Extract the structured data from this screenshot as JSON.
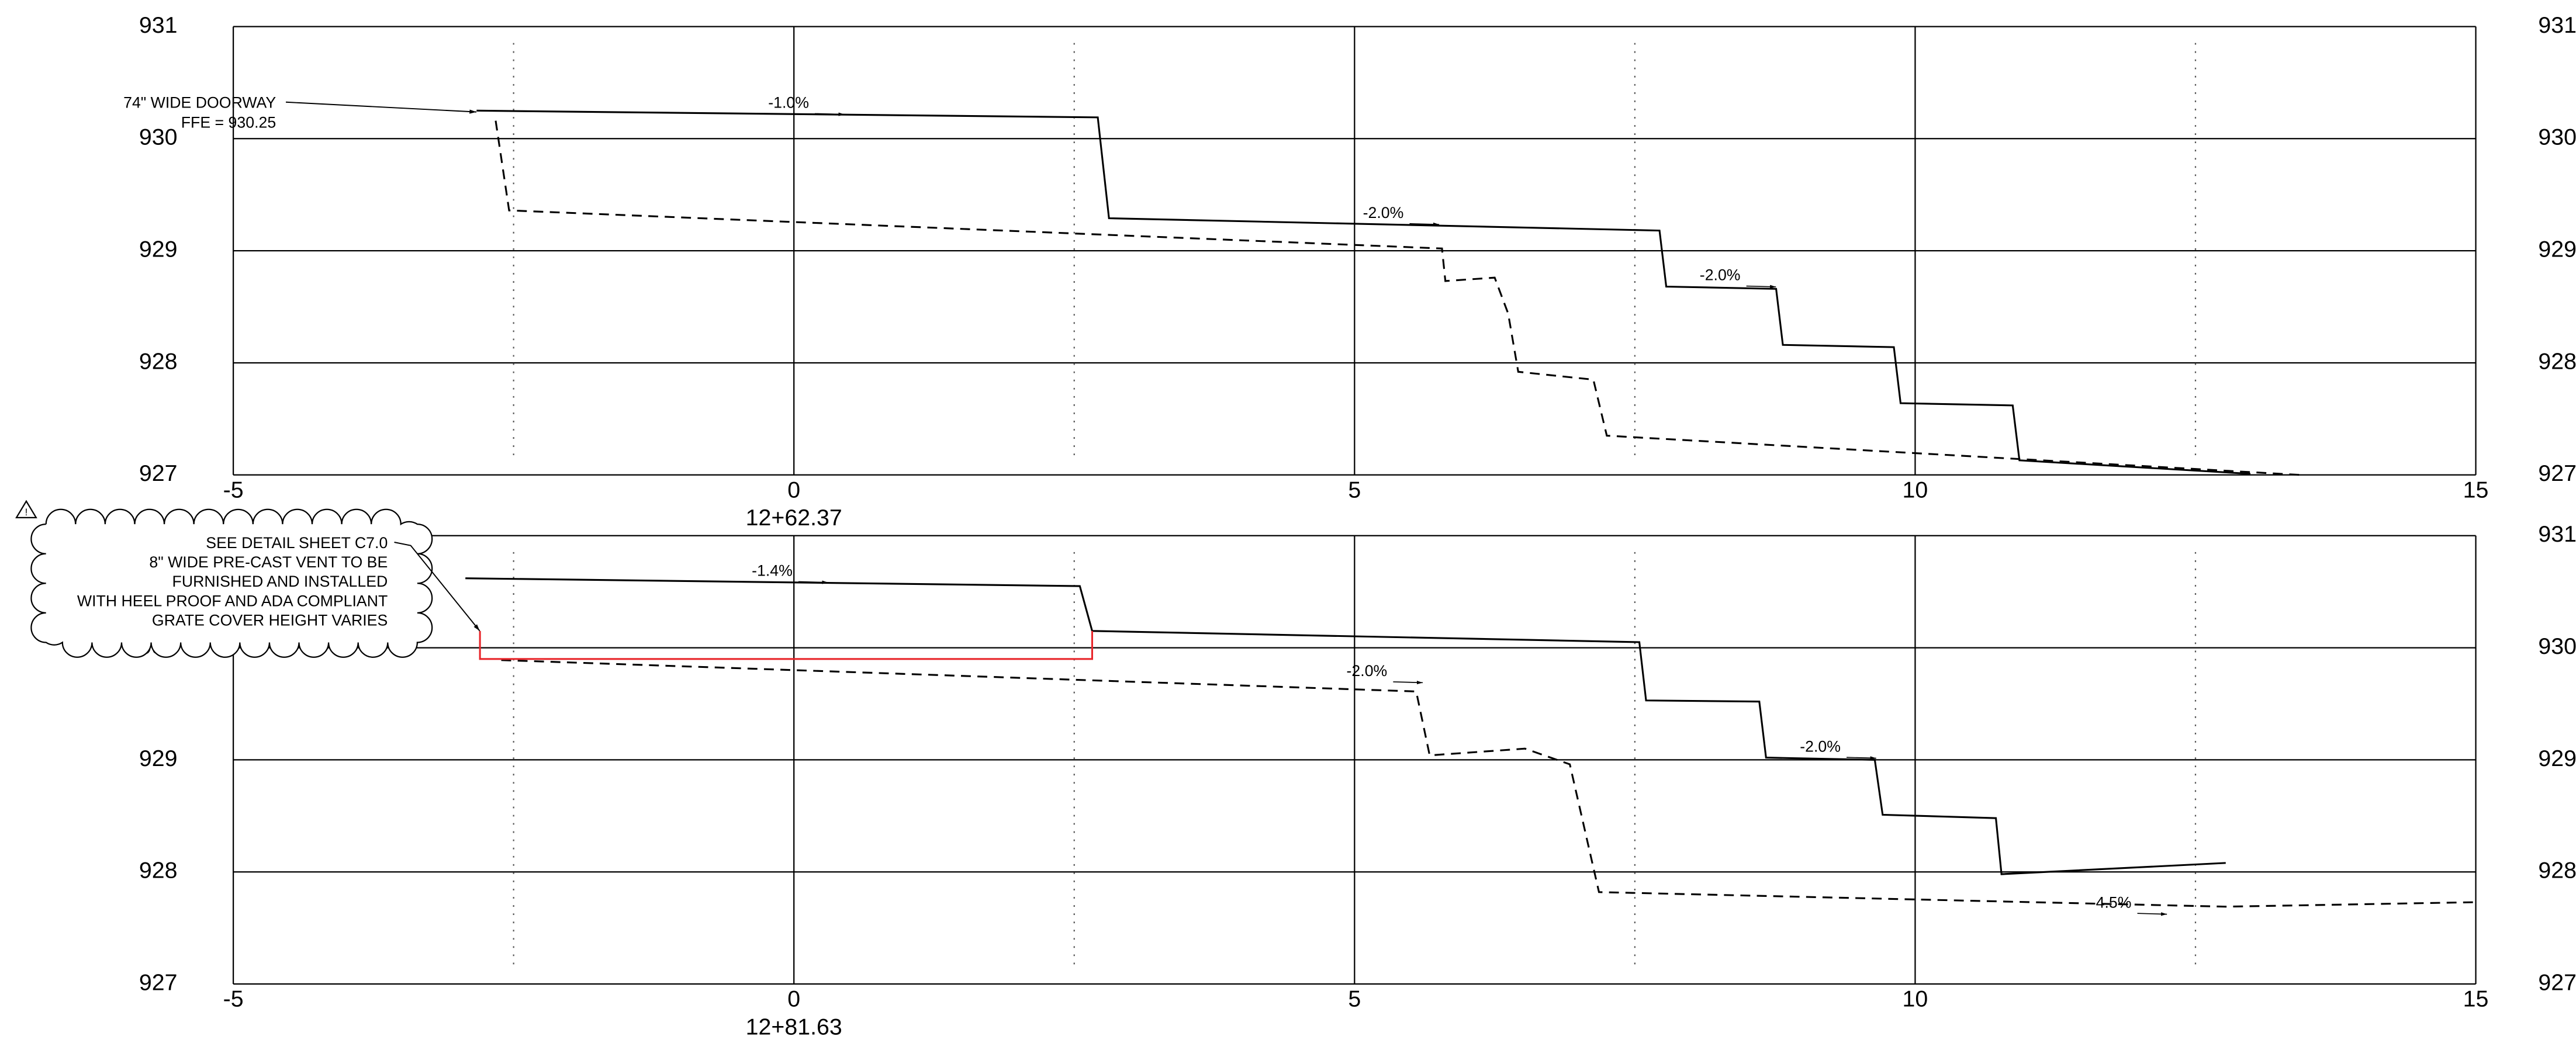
{
  "chart_data": [
    {
      "type": "line",
      "x_label": "12+62.37",
      "xlim": [
        -5,
        15
      ],
      "ylim": [
        927,
        931
      ],
      "xticks": [
        -5,
        0,
        5,
        10,
        15
      ],
      "yticks": [
        927,
        928,
        929,
        930,
        931
      ],
      "grid": true,
      "minor_xticks": [
        -2.5,
        2.5,
        7.5,
        12.5
      ],
      "series": [
        {
          "color": "#000000",
          "style": "solid",
          "x": [
            -2.83,
            2.71,
            2.81,
            7.72,
            7.78,
            8.76,
            8.82,
            9.81,
            9.87,
            10.87,
            10.93,
            12.99
          ],
          "values": [
            930.25,
            930.19,
            929.29,
            929.18,
            928.68,
            928.66,
            928.16,
            928.14,
            927.64,
            927.62,
            927.13,
            927.01
          ]
        },
        {
          "color": "#000000",
          "style": "dashed",
          "x": [
            -2.66,
            -2.54,
            5.78,
            5.81,
            6.25,
            6.37,
            6.46,
            7.13,
            7.25,
            13.43
          ],
          "values": [
            930.16,
            929.36,
            929.02,
            928.73,
            928.76,
            928.44,
            927.92,
            927.85,
            927.35,
            927.0
          ]
        }
      ],
      "annotations": [
        "-1.0%",
        "-2.0%",
        "-2.0%"
      ],
      "note": [
        "74\" WIDE DOORWAY",
        "FFE = 930.25"
      ]
    },
    {
      "type": "line",
      "x_label": "12+81.63",
      "xlim": [
        -5,
        15
      ],
      "ylim": [
        927,
        931
      ],
      "xticks": [
        -5,
        0,
        5,
        10,
        15
      ],
      "yticks": [
        927,
        928,
        929,
        930,
        931
      ],
      "grid": true,
      "minor_xticks": [
        -2.5,
        2.5,
        7.5,
        12.5
      ],
      "series": [
        {
          "color": "#000000",
          "style": "solid",
          "x": [
            -2.93,
            2.55,
            2.66,
            7.54,
            7.6,
            8.61,
            8.67,
            9.64,
            9.71,
            10.72,
            10.77,
            12.77
          ],
          "values": [
            930.62,
            930.55,
            930.15,
            930.05,
            929.53,
            929.52,
            929.02,
            929.0,
            928.51,
            928.48,
            927.98,
            928.08
          ]
        },
        {
          "color": "#000000",
          "style": "dashed",
          "x": [
            -2.61,
            5.55,
            5.67,
            6.52,
            6.92,
            7.18,
            12.77,
            15
          ],
          "values": [
            929.89,
            929.61,
            929.04,
            929.1,
            928.96,
            927.82,
            927.69,
            927.73
          ]
        },
        {
          "color": "#e8262b",
          "style": "solid",
          "x": [
            -2.8,
            -2.8,
            2.66,
            2.66
          ],
          "values": [
            930.15,
            929.9,
            929.9,
            930.15
          ]
        }
      ],
      "annotations": [
        "-1.4%",
        "-2.0%",
        "-2.0%",
        "-4.5%"
      ],
      "note": [
        "SEE DETAIL SHEET C7.0",
        "8\" WIDE PRE-CAST VENT TO BE",
        "FURNISHED AND INSTALLED",
        "WITH HEEL PROOF AND ADA COMPLIANT",
        "GRATE COVER HEIGHT VARIES"
      ]
    }
  ]
}
